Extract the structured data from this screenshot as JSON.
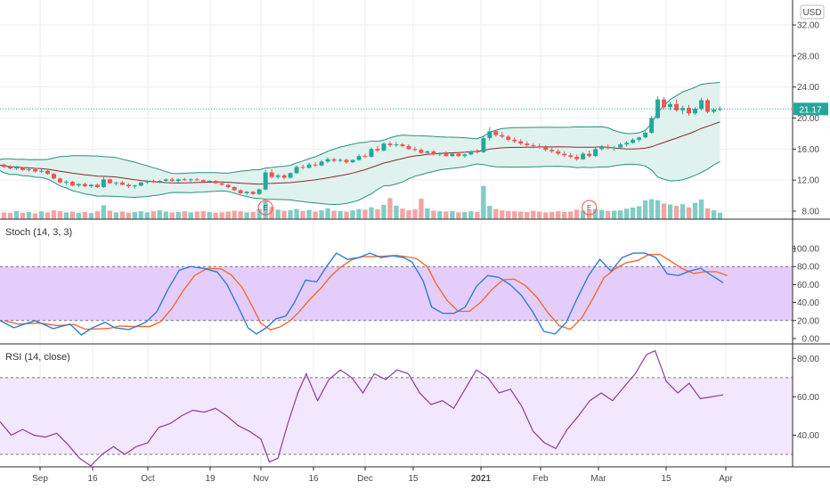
{
  "colors": {
    "up": "#26a69a",
    "down": "#ef5350",
    "upVol": "#7fcdc5",
    "downVol": "#f4a3a3",
    "bandLine": "#2a8f7e",
    "bandFill": "#dff2ed",
    "basis": "#8b2a2a",
    "stochK": "#2f7ed8",
    "stochD": "#f06b35",
    "stochZone": "#e4cdfb",
    "rsiLine": "#8e3d9b",
    "rsiZone": "#f2e7fd",
    "priceLine": "#26a69a",
    "grid": "#eeeeee",
    "separator": "#2b2b2b"
  },
  "chart_data": [
    {
      "type": "candlestick",
      "currency": "USD",
      "y_ticks": [
        "8.00",
        "12.00",
        "16.00",
        "20.00",
        "24.00",
        "28.00",
        "32.00"
      ],
      "last_price": "21.17",
      "ohlc": [
        [
          14.2,
          14.4,
          13.9,
          14.0
        ],
        [
          14.0,
          14.1,
          13.6,
          13.7
        ],
        [
          13.7,
          13.9,
          13.4,
          13.5
        ],
        [
          13.5,
          13.8,
          13.3,
          13.6
        ],
        [
          13.6,
          13.7,
          13.2,
          13.3
        ],
        [
          13.3,
          13.6,
          13.1,
          13.4
        ],
        [
          13.4,
          13.5,
          13.0,
          13.1
        ],
        [
          13.1,
          13.4,
          12.9,
          13.2
        ],
        [
          13.2,
          13.3,
          12.7,
          12.8
        ],
        [
          12.8,
          12.9,
          12.1,
          12.2
        ],
        [
          12.2,
          12.3,
          11.6,
          11.7
        ],
        [
          11.7,
          12.0,
          11.4,
          11.8
        ],
        [
          11.8,
          11.9,
          11.2,
          11.3
        ],
        [
          11.3,
          11.6,
          11.1,
          11.5
        ],
        [
          11.5,
          11.7,
          11.1,
          11.2
        ],
        [
          11.2,
          11.5,
          11.0,
          11.4
        ],
        [
          11.4,
          11.6,
          11.0,
          11.1
        ],
        [
          11.1,
          12.4,
          11.0,
          12.1
        ],
        [
          12.1,
          12.2,
          11.5,
          11.6
        ],
        [
          11.6,
          11.8,
          11.3,
          11.7
        ],
        [
          11.7,
          11.9,
          11.3,
          11.4
        ],
        [
          11.4,
          11.6,
          11.0,
          11.2
        ],
        [
          11.2,
          11.4,
          10.9,
          11.3
        ],
        [
          11.3,
          11.8,
          11.2,
          11.7
        ],
        [
          11.7,
          12.0,
          11.5,
          11.9
        ],
        [
          11.9,
          12.1,
          11.6,
          11.7
        ],
        [
          11.7,
          12.0,
          11.6,
          11.9
        ],
        [
          11.9,
          12.2,
          11.8,
          12.1
        ],
        [
          12.1,
          12.3,
          11.8,
          11.9
        ],
        [
          11.9,
          12.2,
          11.7,
          12.1
        ],
        [
          12.1,
          12.3,
          11.9,
          12.0
        ],
        [
          12.0,
          12.2,
          11.8,
          12.1
        ],
        [
          12.1,
          12.3,
          11.9,
          12.0
        ],
        [
          12.0,
          12.1,
          11.7,
          11.8
        ],
        [
          11.8,
          12.0,
          11.6,
          11.9
        ],
        [
          11.9,
          12.0,
          11.5,
          11.6
        ],
        [
          11.6,
          11.8,
          11.3,
          11.4
        ],
        [
          11.4,
          11.5,
          11.0,
          11.1
        ],
        [
          11.1,
          11.2,
          10.6,
          10.7
        ],
        [
          10.7,
          10.8,
          10.2,
          10.3
        ],
        [
          10.3,
          10.6,
          10.1,
          10.5
        ],
        [
          10.5,
          10.6,
          10.1,
          10.2
        ],
        [
          10.2,
          10.9,
          10.1,
          10.8
        ],
        [
          10.8,
          13.3,
          10.7,
          13.0
        ],
        [
          13.0,
          13.4,
          12.2,
          12.4
        ],
        [
          12.4,
          12.8,
          12.2,
          12.6
        ],
        [
          12.6,
          12.8,
          12.1,
          12.3
        ],
        [
          12.3,
          13.0,
          12.2,
          12.9
        ],
        [
          12.9,
          13.9,
          12.8,
          13.7
        ],
        [
          13.7,
          14.0,
          13.4,
          13.6
        ],
        [
          13.6,
          14.2,
          13.5,
          14.0
        ],
        [
          14.0,
          14.3,
          13.7,
          13.9
        ],
        [
          13.9,
          14.6,
          13.8,
          14.4
        ],
        [
          14.4,
          14.9,
          14.2,
          14.7
        ],
        [
          14.7,
          14.9,
          14.3,
          14.5
        ],
        [
          14.5,
          14.8,
          14.3,
          14.6
        ],
        [
          14.6,
          14.8,
          14.1,
          14.3
        ],
        [
          14.3,
          14.7,
          14.2,
          14.6
        ],
        [
          14.6,
          15.3,
          14.5,
          15.1
        ],
        [
          15.1,
          15.4,
          14.8,
          15.0
        ],
        [
          15.0,
          16.2,
          14.9,
          16.0
        ],
        [
          16.0,
          16.4,
          15.6,
          15.8
        ],
        [
          15.8,
          16.9,
          15.7,
          16.7
        ],
        [
          16.7,
          17.0,
          16.3,
          16.5
        ],
        [
          16.5,
          16.9,
          16.3,
          16.6
        ],
        [
          16.6,
          16.8,
          16.2,
          16.4
        ],
        [
          16.4,
          16.6,
          15.9,
          16.0
        ],
        [
          16.0,
          16.3,
          15.7,
          15.9
        ],
        [
          15.9,
          16.1,
          15.4,
          15.5
        ],
        [
          15.5,
          15.8,
          15.3,
          15.7
        ],
        [
          15.7,
          15.9,
          15.2,
          15.3
        ],
        [
          15.3,
          15.6,
          15.1,
          15.5
        ],
        [
          15.5,
          15.7,
          15.0,
          15.1
        ],
        [
          15.1,
          15.5,
          15.0,
          15.4
        ],
        [
          15.4,
          15.6,
          15.0,
          15.1
        ],
        [
          15.1,
          15.4,
          14.9,
          15.3
        ],
        [
          15.3,
          15.8,
          15.2,
          15.7
        ],
        [
          15.7,
          16.0,
          15.4,
          15.6
        ],
        [
          15.6,
          17.7,
          15.5,
          17.4
        ],
        [
          17.4,
          18.8,
          17.1,
          18.3
        ],
        [
          18.3,
          18.5,
          17.6,
          17.8
        ],
        [
          17.8,
          18.2,
          17.4,
          17.6
        ],
        [
          17.6,
          17.8,
          17.0,
          17.2
        ],
        [
          17.2,
          17.5,
          16.8,
          17.0
        ],
        [
          17.0,
          17.3,
          16.5,
          16.7
        ],
        [
          16.7,
          17.0,
          16.3,
          16.5
        ],
        [
          16.5,
          16.8,
          16.1,
          16.4
        ],
        [
          16.4,
          16.7,
          16.0,
          16.2
        ],
        [
          16.2,
          16.5,
          15.7,
          15.9
        ],
        [
          15.9,
          16.2,
          15.5,
          15.7
        ],
        [
          15.7,
          16.0,
          15.2,
          15.4
        ],
        [
          15.4,
          15.7,
          15.0,
          15.2
        ],
        [
          15.2,
          15.5,
          14.8,
          15.0
        ],
        [
          15.0,
          15.3,
          14.5,
          14.7
        ],
        [
          14.7,
          15.6,
          14.6,
          15.4
        ],
        [
          15.4,
          15.8,
          14.9,
          15.1
        ],
        [
          15.1,
          16.2,
          15.0,
          16.0
        ],
        [
          16.0,
          16.5,
          15.8,
          16.3
        ],
        [
          16.3,
          16.6,
          15.9,
          16.1
        ],
        [
          16.1,
          16.4,
          15.8,
          16.2
        ],
        [
          16.2,
          16.8,
          16.1,
          16.6
        ],
        [
          16.6,
          17.0,
          16.3,
          16.8
        ],
        [
          16.8,
          17.4,
          16.7,
          17.2
        ],
        [
          17.2,
          17.6,
          16.9,
          17.5
        ],
        [
          17.5,
          18.3,
          17.4,
          18.1
        ],
        [
          18.1,
          20.3,
          18.0,
          20.0
        ],
        [
          20.0,
          22.8,
          19.9,
          22.4
        ],
        [
          22.4,
          22.7,
          21.1,
          21.4
        ],
        [
          21.4,
          22.1,
          21.0,
          21.8
        ],
        [
          21.8,
          22.4,
          20.8,
          21.0
        ],
        [
          21.0,
          21.6,
          20.5,
          21.3
        ],
        [
          21.3,
          21.7,
          20.3,
          20.6
        ],
        [
          20.6,
          21.4,
          20.4,
          21.2
        ],
        [
          21.2,
          22.6,
          21.0,
          22.3
        ],
        [
          22.3,
          22.5,
          20.6,
          20.8
        ],
        [
          20.8,
          21.3,
          20.6,
          21.1
        ],
        [
          21.1,
          21.5,
          20.9,
          21.17
        ]
      ],
      "volume": [
        2.2,
        2.0,
        1.8,
        2.4,
        1.9,
        2.1,
        1.7,
        2.3,
        2.0,
        2.6,
        2.4,
        2.0,
        2.2,
        1.9,
        2.1,
        1.8,
        2.3,
        4.1,
        2.5,
        2.0,
        2.2,
        1.9,
        2.1,
        2.3,
        2.0,
        2.4,
        2.6,
        2.2,
        2.0,
        2.1,
        2.3,
        2.0,
        2.2,
        2.4,
        2.1,
        1.9,
        2.0,
        2.2,
        2.5,
        2.3,
        2.0,
        2.1,
        3.0,
        5.4,
        3.6,
        2.8,
        2.5,
        2.6,
        3.0,
        2.4,
        2.7,
        2.2,
        2.6,
        3.2,
        2.5,
        2.4,
        2.2,
        2.6,
        3.0,
        2.8,
        3.5,
        2.9,
        4.2,
        6.2,
        4.0,
        3.1,
        2.6,
        2.9,
        6.0,
        3.2,
        2.5,
        2.3,
        2.2,
        2.4,
        2.0,
        2.1,
        2.3,
        2.1,
        9.8,
        3.9,
        3.0,
        2.6,
        2.4,
        2.3,
        2.2,
        2.1,
        2.5,
        2.2,
        2.0,
        2.1,
        2.3,
        2.1,
        2.2,
        2.8,
        2.5,
        2.6,
        3.0,
        2.7,
        2.4,
        2.5,
        2.6,
        3.1,
        3.4,
        3.8,
        5.5,
        5.9,
        5.6,
        4.6,
        4.3,
        3.9,
        4.4,
        3.5,
        4.8,
        5.8,
        3.2,
        2.6,
        1.9
      ],
      "earnings_markers": [
        "E",
        "E"
      ]
    },
    {
      "type": "line",
      "title": "Stoch (14, 3, 3)",
      "y_ticks": [
        "0.00",
        "20.00",
        "40.00",
        "60.00",
        "80.00",
        "100.00"
      ],
      "upper_band": 80,
      "lower_band": 20,
      "points": [
        [
          0,
          20
        ],
        [
          10,
          12
        ],
        [
          25,
          20
        ],
        [
          38,
          11
        ],
        [
          50,
          16
        ],
        [
          58,
          4
        ],
        [
          66,
          12
        ],
        [
          75,
          18
        ],
        [
          82,
          12
        ],
        [
          92,
          10
        ],
        [
          104,
          18
        ],
        [
          112,
          30
        ],
        [
          120,
          55
        ],
        [
          128,
          76
        ],
        [
          136,
          80
        ],
        [
          145,
          78
        ],
        [
          155,
          74
        ],
        [
          162,
          60
        ],
        [
          170,
          35
        ],
        [
          177,
          12
        ],
        [
          183,
          5
        ],
        [
          190,
          12
        ],
        [
          197,
          22
        ],
        [
          204,
          25
        ],
        [
          210,
          40
        ],
        [
          218,
          65
        ],
        [
          226,
          63
        ],
        [
          233,
          80
        ],
        [
          240,
          95
        ],
        [
          248,
          88
        ],
        [
          256,
          90
        ],
        [
          264,
          95
        ],
        [
          272,
          90
        ],
        [
          280,
          92
        ],
        [
          288,
          90
        ],
        [
          294,
          85
        ],
        [
          302,
          64
        ],
        [
          308,
          35
        ],
        [
          316,
          28
        ],
        [
          324,
          28
        ],
        [
          332,
          35
        ],
        [
          340,
          58
        ],
        [
          348,
          70
        ],
        [
          356,
          68
        ],
        [
          364,
          60
        ],
        [
          372,
          48
        ],
        [
          380,
          30
        ],
        [
          388,
          8
        ],
        [
          396,
          5
        ],
        [
          404,
          18
        ],
        [
          412,
          45
        ],
        [
          420,
          70
        ],
        [
          428,
          88
        ],
        [
          436,
          75
        ],
        [
          444,
          90
        ],
        [
          452,
          95
        ],
        [
          460,
          95
        ],
        [
          468,
          90
        ],
        [
          476,
          72
        ],
        [
          484,
          70
        ],
        [
          492,
          75
        ],
        [
          500,
          78
        ],
        [
          508,
          70
        ],
        [
          516,
          62
        ]
      ]
    },
    {
      "type": "line",
      "title": "RSI (14, close)",
      "y_ticks": [
        "40.00",
        "60.00",
        "80.00"
      ],
      "upper_band": 70,
      "lower_band": 30,
      "points": [
        [
          0,
          47
        ],
        [
          8,
          40
        ],
        [
          16,
          43
        ],
        [
          24,
          40
        ],
        [
          32,
          39
        ],
        [
          40,
          41
        ],
        [
          48,
          35
        ],
        [
          56,
          28
        ],
        [
          64,
          24
        ],
        [
          72,
          30
        ],
        [
          80,
          34
        ],
        [
          88,
          30
        ],
        [
          96,
          34
        ],
        [
          104,
          36
        ],
        [
          112,
          44
        ],
        [
          120,
          46
        ],
        [
          128,
          50
        ],
        [
          136,
          53
        ],
        [
          144,
          52
        ],
        [
          152,
          54
        ],
        [
          160,
          50
        ],
        [
          168,
          45
        ],
        [
          176,
          42
        ],
        [
          184,
          38
        ],
        [
          190,
          26
        ],
        [
          196,
          28
        ],
        [
          203,
          46
        ],
        [
          210,
          62
        ],
        [
          216,
          72
        ],
        [
          224,
          58
        ],
        [
          232,
          69
        ],
        [
          240,
          74
        ],
        [
          248,
          70
        ],
        [
          256,
          62
        ],
        [
          264,
          72
        ],
        [
          272,
          69
        ],
        [
          280,
          74
        ],
        [
          288,
          72
        ],
        [
          296,
          62
        ],
        [
          304,
          56
        ],
        [
          312,
          58
        ],
        [
          320,
          54
        ],
        [
          328,
          64
        ],
        [
          336,
          74
        ],
        [
          344,
          70
        ],
        [
          352,
          62
        ],
        [
          360,
          64
        ],
        [
          368,
          55
        ],
        [
          376,
          42
        ],
        [
          384,
          36
        ],
        [
          392,
          33
        ],
        [
          400,
          43
        ],
        [
          408,
          50
        ],
        [
          416,
          58
        ],
        [
          424,
          62
        ],
        [
          432,
          58
        ],
        [
          440,
          65
        ],
        [
          448,
          72
        ],
        [
          456,
          82
        ],
        [
          462,
          84
        ],
        [
          470,
          68
        ],
        [
          478,
          62
        ],
        [
          486,
          67
        ],
        [
          494,
          59
        ],
        [
          502,
          60
        ],
        [
          510,
          61
        ]
      ]
    }
  ],
  "x_ticks": [
    "Sep",
    "16",
    "Oct",
    "19",
    "Nov",
    "16",
    "Dec",
    "15",
    "2021",
    "Feb",
    "Mar",
    "15",
    "Apr"
  ]
}
